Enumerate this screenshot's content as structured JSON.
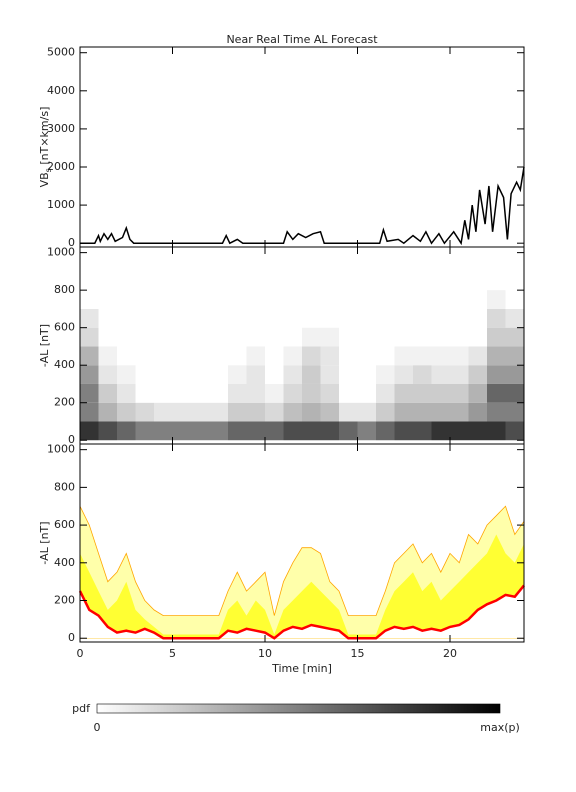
{
  "chart_data": [
    {
      "type": "line",
      "title": "Near Real Time AL Forecast",
      "ylabel": {
        "text": "VB",
        "subscript": "s",
        "suffix": " [nT×km/s]"
      },
      "color": "#000000",
      "xlim": [
        0,
        24
      ],
      "ylim": [
        -100,
        5150
      ],
      "yticks": [
        0,
        1000,
        2000,
        3000,
        4000,
        5000
      ],
      "x": [
        0,
        0.8,
        1.0,
        1.1,
        1.3,
        1.5,
        1.7,
        1.9,
        2.3,
        2.5,
        2.7,
        2.9,
        7.7,
        7.9,
        8.1,
        8.5,
        8.8,
        11.0,
        11.2,
        11.5,
        11.8,
        12.2,
        12.6,
        13.0,
        13.2,
        16.2,
        16.4,
        16.6,
        17.2,
        17.5,
        18.0,
        18.4,
        18.7,
        19.0,
        19.4,
        19.7,
        20.2,
        20.6,
        20.8,
        21.0,
        21.2,
        21.4,
        21.6,
        21.9,
        22.1,
        22.3,
        22.6,
        22.9,
        23.1,
        23.3,
        23.6,
        23.8,
        24.0
      ],
      "values": [
        0,
        0,
        200,
        50,
        250,
        100,
        250,
        50,
        150,
        400,
        100,
        0,
        0,
        200,
        0,
        100,
        0,
        0,
        300,
        100,
        250,
        150,
        250,
        300,
        0,
        0,
        350,
        50,
        100,
        0,
        200,
        50,
        300,
        0,
        250,
        0,
        300,
        0,
        600,
        100,
        1000,
        300,
        1400,
        500,
        1500,
        300,
        1500,
        1200,
        100,
        1300,
        1600,
        1400,
        2000
      ]
    },
    {
      "type": "heatmap",
      "ylabel": "-AL [nT]",
      "xlim": [
        0,
        24
      ],
      "ylim": [
        -20,
        1030
      ],
      "yticks": [
        0,
        200,
        400,
        600,
        800,
        1000
      ],
      "colors": [
        "#ffffff",
        "#000000"
      ],
      "colorbar": {
        "label": "pdf",
        "min_label": "0",
        "max_label": "max(p)"
      },
      "xbins": [
        0,
        1,
        2,
        3,
        4,
        5,
        6,
        7,
        8,
        9,
        10,
        11,
        12,
        13,
        14,
        15,
        16,
        17,
        18,
        19,
        20,
        21,
        22,
        23,
        24
      ],
      "ybins": [
        0,
        100,
        200,
        300,
        400,
        500,
        600,
        700,
        800
      ],
      "z": [
        [
          0.8,
          0.7,
          0.6,
          0.5,
          0.5,
          0.5,
          0.5,
          0.5,
          0.6,
          0.6,
          0.6,
          0.7,
          0.7,
          0.7,
          0.6,
          0.5,
          0.6,
          0.7,
          0.7,
          0.8,
          0.8,
          0.8,
          0.8,
          0.7
        ],
        [
          0.5,
          0.3,
          0.2,
          0.15,
          0.1,
          0.1,
          0.1,
          0.1,
          0.2,
          0.2,
          0.15,
          0.25,
          0.3,
          0.25,
          0.1,
          0.1,
          0.2,
          0.3,
          0.3,
          0.3,
          0.3,
          0.4,
          0.5,
          0.5
        ],
        [
          0.5,
          0.2,
          0.1,
          0,
          0,
          0,
          0,
          0,
          0.1,
          0.1,
          0.05,
          0.15,
          0.2,
          0.15,
          0,
          0,
          0.1,
          0.2,
          0.2,
          0.2,
          0.2,
          0.3,
          0.6,
          0.6
        ],
        [
          0.4,
          0.1,
          0.05,
          0,
          0,
          0,
          0,
          0,
          0.05,
          0.1,
          0,
          0.1,
          0.2,
          0.1,
          0,
          0,
          0.05,
          0.1,
          0.15,
          0.1,
          0.1,
          0.2,
          0.4,
          0.4
        ],
        [
          0.3,
          0.05,
          0,
          0,
          0,
          0,
          0,
          0,
          0,
          0.05,
          0,
          0.05,
          0.15,
          0.1,
          0,
          0,
          0,
          0.05,
          0.05,
          0.05,
          0.05,
          0.1,
          0.3,
          0.3
        ],
        [
          0.15,
          0,
          0,
          0,
          0,
          0,
          0,
          0,
          0,
          0,
          0,
          0,
          0.05,
          0.05,
          0,
          0,
          0,
          0,
          0,
          0,
          0,
          0,
          0.2,
          0.2
        ],
        [
          0.1,
          0,
          0,
          0,
          0,
          0,
          0,
          0,
          0,
          0,
          0,
          0,
          0,
          0,
          0,
          0,
          0,
          0,
          0,
          0,
          0,
          0,
          0.15,
          0.1
        ],
        [
          0,
          0,
          0,
          0,
          0,
          0,
          0,
          0,
          0,
          0,
          0,
          0,
          0,
          0,
          0,
          0,
          0,
          0,
          0,
          0,
          0,
          0,
          0.05,
          0
        ]
      ]
    },
    {
      "type": "band",
      "ylabel": "-AL [nT]",
      "xlabel": "Time [min]",
      "xlim": [
        0,
        24
      ],
      "xticks": [
        0,
        5,
        10,
        15,
        20
      ],
      "ylim": [
        -20,
        1030
      ],
      "yticks": [
        0,
        200,
        400,
        600,
        800,
        1000
      ],
      "x": [
        0,
        0.5,
        1,
        1.5,
        2,
        2.5,
        3,
        3.5,
        4,
        4.5,
        5,
        5.5,
        6,
        6.5,
        7,
        7.5,
        8,
        8.5,
        9,
        9.5,
        10,
        10.5,
        11,
        11.5,
        12,
        12.5,
        13,
        13.5,
        14,
        14.5,
        15,
        15.5,
        16,
        16.5,
        17,
        17.5,
        18,
        18.5,
        19,
        19.5,
        20,
        20.5,
        21,
        21.5,
        22,
        22.5,
        23,
        23.5,
        24
      ],
      "series": [
        {
          "color": "#ff0000",
          "values": [
            250,
            150,
            120,
            60,
            30,
            40,
            30,
            50,
            30,
            0,
            0,
            0,
            0,
            0,
            0,
            0,
            40,
            30,
            50,
            40,
            30,
            0,
            40,
            60,
            50,
            70,
            60,
            50,
            40,
            0,
            0,
            0,
            0,
            40,
            60,
            50,
            60,
            40,
            50,
            40,
            60,
            70,
            100,
            150,
            180,
            200,
            230,
            220,
            280
          ]
        },
        {
          "color": "#ffff33",
          "values": [
            450,
            350,
            250,
            150,
            200,
            300,
            150,
            100,
            60,
            20,
            20,
            20,
            20,
            20,
            20,
            20,
            150,
            200,
            120,
            200,
            150,
            20,
            150,
            200,
            250,
            300,
            250,
            200,
            150,
            20,
            20,
            20,
            20,
            150,
            250,
            300,
            350,
            250,
            300,
            200,
            250,
            300,
            350,
            400,
            450,
            550,
            450,
            400,
            500
          ]
        },
        {
          "color": "#ffffaa",
          "edge_color": "#ffa500",
          "values": [
            700,
            600,
            450,
            300,
            350,
            450,
            300,
            200,
            150,
            120,
            120,
            120,
            120,
            120,
            120,
            120,
            250,
            350,
            250,
            300,
            350,
            120,
            300,
            400,
            480,
            480,
            450,
            300,
            250,
            120,
            120,
            120,
            120,
            250,
            400,
            450,
            500,
            400,
            450,
            350,
            450,
            400,
            550,
            500,
            600,
            650,
            700,
            550,
            620
          ]
        }
      ]
    }
  ]
}
